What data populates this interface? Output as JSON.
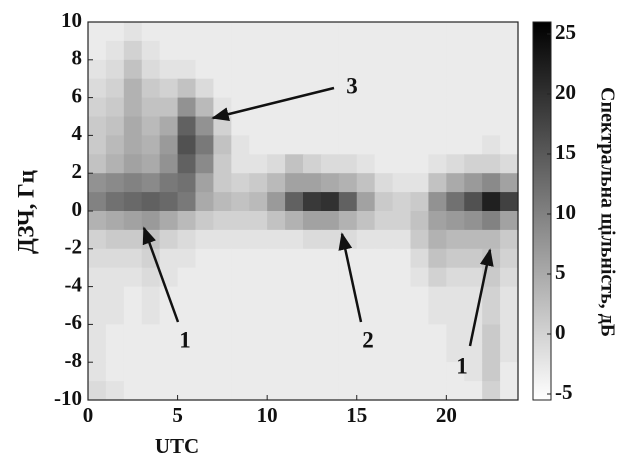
{
  "chart_data": {
    "type": "heatmap",
    "xlabel": "UTC",
    "ylabel": "ДЗЧ, Гц",
    "colorbar_label": "Спектральна щільність, дБ",
    "xlim": [
      0,
      24
    ],
    "ylim": [
      -10,
      10
    ],
    "clim": [
      -5.5,
      26
    ],
    "xticks": [
      0,
      5,
      10,
      15,
      20
    ],
    "yticks": [
      -10,
      -8,
      -6,
      -4,
      -2,
      0,
      2,
      4,
      6,
      8,
      10
    ],
    "cticks": [
      -5,
      0,
      5,
      10,
      15,
      20,
      25
    ],
    "colormap": "gray",
    "x": [
      0,
      1,
      2,
      3,
      4,
      5,
      6,
      7,
      8,
      9,
      10,
      11,
      12,
      13,
      14,
      15,
      16,
      17,
      18,
      19,
      20,
      21,
      22,
      23,
      24
    ],
    "y": [
      10,
      9,
      8,
      7,
      6,
      5,
      4,
      3,
      2,
      1,
      0,
      -1,
      -2,
      -3,
      -4,
      -5,
      -6,
      -7,
      -8,
      -9,
      -10
    ],
    "z": [
      [
        -3,
        -3,
        -2,
        -3,
        -3,
        -3,
        -3,
        -3,
        -3,
        -3,
        -3,
        -3,
        -3,
        -3,
        -3,
        -3,
        -3,
        -3,
        -3,
        -3,
        -3,
        -3,
        -3,
        -3
      ],
      [
        -3,
        -2,
        0,
        -2,
        -3,
        -3,
        -3,
        -3,
        -3,
        -3,
        -3,
        -3,
        -3,
        -3,
        -3,
        -3,
        -3,
        -3,
        -3,
        -3,
        -3,
        -3,
        -3,
        -3
      ],
      [
        -2,
        -1,
        2,
        -1,
        -2,
        -2,
        -3,
        -3,
        -3,
        -3,
        -3,
        -3,
        -3,
        -3,
        -3,
        -3,
        -3,
        -3,
        -3,
        -3,
        -3,
        -3,
        -3,
        -3
      ],
      [
        -1,
        0,
        4,
        1,
        0,
        2,
        -1,
        -3,
        -3,
        -3,
        -3,
        -3,
        -3,
        -3,
        -3,
        -3,
        -3,
        -3,
        -3,
        -3,
        -3,
        -3,
        -3,
        -3
      ],
      [
        0,
        1,
        4,
        2,
        2,
        8,
        3,
        -2,
        -3,
        -3,
        -3,
        -3,
        -3,
        -3,
        -3,
        -3,
        -3,
        -3,
        -3,
        -3,
        -3,
        -3,
        -3,
        -3
      ],
      [
        1,
        2,
        5,
        3,
        5,
        14,
        8,
        0,
        -3,
        -3,
        -3,
        -3,
        -3,
        -3,
        -3,
        -3,
        -3,
        -3,
        -3,
        -3,
        -3,
        -3,
        -3,
        -3
      ],
      [
        1,
        3,
        5,
        4,
        7,
        16,
        11,
        2,
        -2,
        -3,
        -3,
        -3,
        -3,
        -3,
        -3,
        -3,
        -3,
        -3,
        -3,
        -3,
        -3,
        -3,
        -2,
        -3
      ],
      [
        2,
        4,
        6,
        5,
        8,
        14,
        9,
        1,
        -2,
        -2,
        -1,
        2,
        0,
        -1,
        -1,
        -2,
        -3,
        -3,
        -3,
        -2,
        -1,
        0,
        0,
        -1
      ],
      [
        8,
        9,
        10,
        9,
        11,
        12,
        6,
        1,
        0,
        1,
        3,
        6,
        6,
        5,
        4,
        2,
        -1,
        -2,
        -2,
        2,
        5,
        7,
        9,
        6
      ],
      [
        10,
        12,
        13,
        14,
        13,
        11,
        5,
        3,
        2,
        3,
        7,
        14,
        19,
        20,
        14,
        6,
        1,
        0,
        1,
        8,
        12,
        16,
        22,
        18
      ],
      [
        4,
        5,
        6,
        7,
        5,
        3,
        1,
        0,
        0,
        0,
        2,
        4,
        6,
        6,
        4,
        2,
        0,
        0,
        2,
        6,
        7,
        8,
        10,
        6
      ],
      [
        0,
        1,
        1,
        2,
        0,
        -1,
        -2,
        -2,
        -2,
        -2,
        -2,
        -2,
        -1,
        -1,
        -1,
        -2,
        -2,
        -2,
        1,
        4,
        3,
        3,
        3,
        1
      ],
      [
        -1,
        -1,
        -1,
        0,
        -2,
        -2,
        -3,
        -3,
        -3,
        -3,
        -3,
        -3,
        -3,
        -3,
        -3,
        -3,
        -3,
        -3,
        -1,
        2,
        1,
        1,
        2,
        0
      ],
      [
        -2,
        -2,
        -2,
        -1,
        -2,
        -3,
        -3,
        -3,
        -3,
        -3,
        -3,
        -3,
        -3,
        -3,
        -3,
        -3,
        -3,
        -3,
        -2,
        0,
        -1,
        -1,
        1,
        -1
      ],
      [
        -2,
        -2,
        -3,
        -2,
        -3,
        -3,
        -3,
        -3,
        -3,
        -3,
        -3,
        -3,
        -3,
        -3,
        -3,
        -3,
        -3,
        -3,
        -3,
        -2,
        -2,
        -2,
        0,
        -2
      ],
      [
        -2,
        -2,
        -3,
        -2,
        -3,
        -3,
        -3,
        -3,
        -3,
        -3,
        -3,
        -3,
        -3,
        -3,
        -3,
        -3,
        -3,
        -3,
        -3,
        -2,
        -2,
        -2,
        0,
        -2
      ],
      [
        -2,
        -3,
        -3,
        -3,
        -3,
        -3,
        -3,
        -3,
        -3,
        -3,
        -3,
        -3,
        -3,
        -3,
        -3,
        -3,
        -3,
        -3,
        -3,
        -3,
        -2,
        -2,
        1,
        -2
      ],
      [
        -2,
        -3,
        -3,
        -3,
        -3,
        -3,
        -3,
        -3,
        -3,
        -3,
        -3,
        -3,
        -3,
        -3,
        -3,
        -3,
        -3,
        -3,
        -3,
        -3,
        -2,
        -2,
        1,
        -2
      ],
      [
        -2,
        -3,
        -3,
        -3,
        -3,
        -3,
        -3,
        -3,
        -3,
        -3,
        -3,
        -3,
        -3,
        -3,
        -3,
        -3,
        -3,
        -3,
        -3,
        -3,
        -3,
        -2,
        1,
        -3
      ],
      [
        -1,
        -2,
        -3,
        -3,
        -3,
        -3,
        -3,
        -3,
        -3,
        -3,
        -3,
        -3,
        -3,
        -3,
        -3,
        -3,
        -3,
        -3,
        -3,
        -3,
        -3,
        -3,
        0,
        -3
      ]
    ],
    "annotations": [
      "3",
      "1",
      "2",
      "1"
    ]
  }
}
